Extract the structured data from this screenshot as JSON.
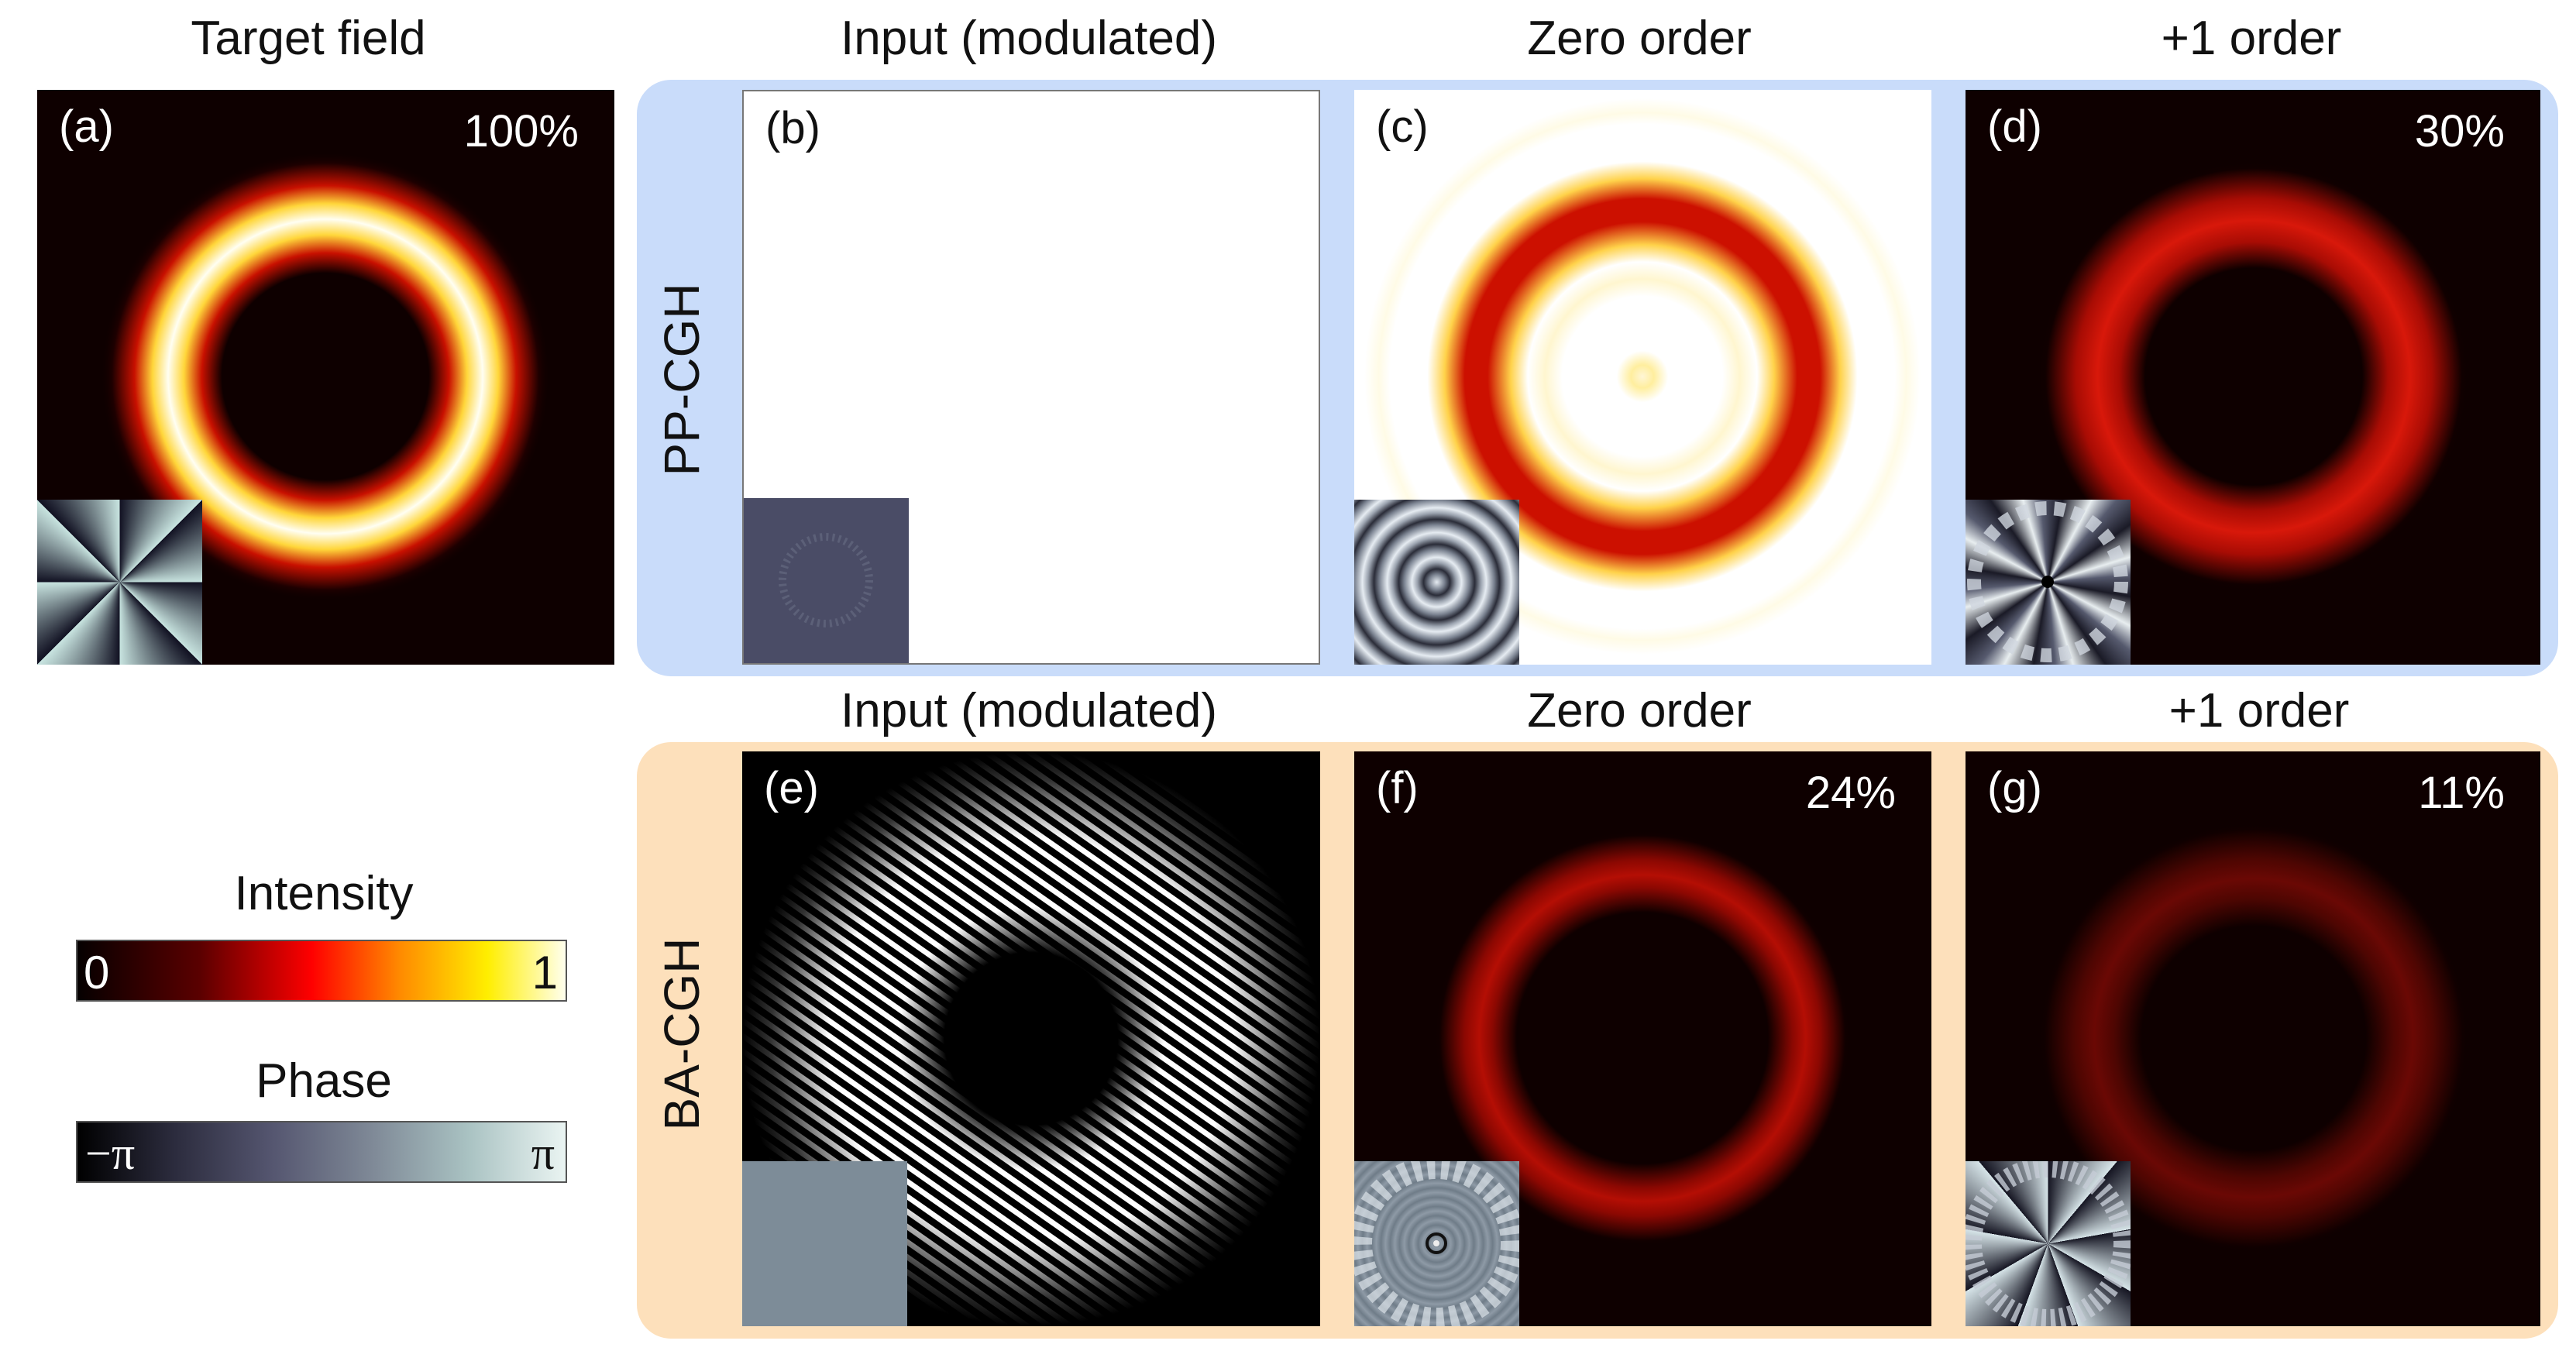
{
  "columns": {
    "target": "Target field",
    "input_top": "Input (modulated)",
    "zero_top": "Zero order",
    "plus1_top": "+1 order",
    "input_bottom": "Input (modulated)",
    "zero_bottom": "Zero order",
    "plus1_bottom": "+1 order"
  },
  "rows": {
    "top": "PP-CGH",
    "bottom": "BA-CGH"
  },
  "panels": {
    "a": {
      "label": "(a)",
      "efficiency": "100%"
    },
    "b": {
      "label": "(b)"
    },
    "c": {
      "label": "(c)"
    },
    "d": {
      "label": "(d)",
      "efficiency": "30%"
    },
    "e": {
      "label": "(e)"
    },
    "f": {
      "label": "(f)",
      "efficiency": "24%"
    },
    "g": {
      "label": "(g)",
      "efficiency": "11%"
    }
  },
  "colorbars": {
    "intensity": {
      "title": "Intensity",
      "min": "0",
      "max": "1"
    },
    "phase": {
      "title": "Phase",
      "min": "−π",
      "max": "π"
    }
  },
  "colors": {
    "pp_row_bg": "#c9dcfa",
    "ba_row_bg": "#fde0bb",
    "field_bg": "#0e0000",
    "ring_red": "#d8180a"
  }
}
